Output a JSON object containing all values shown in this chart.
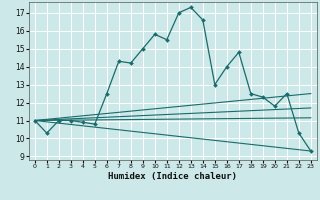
{
  "xlabel": "Humidex (Indice chaleur)",
  "bg_color": "#cce8e8",
  "grid_color": "#aad4d4",
  "line_color": "#1a6b6b",
  "xlim": [
    -0.5,
    23.5
  ],
  "ylim": [
    8.8,
    17.6
  ],
  "yticks": [
    9,
    10,
    11,
    12,
    13,
    14,
    15,
    16,
    17
  ],
  "xticks": [
    0,
    1,
    2,
    3,
    4,
    5,
    6,
    7,
    8,
    9,
    10,
    11,
    12,
    13,
    14,
    15,
    16,
    17,
    18,
    19,
    20,
    21,
    22,
    23
  ],
  "main_x": [
    0,
    1,
    2,
    3,
    4,
    5,
    6,
    7,
    8,
    9,
    10,
    11,
    12,
    13,
    14,
    15,
    16,
    17,
    18,
    19,
    20,
    21,
    22,
    23
  ],
  "main_y": [
    11.0,
    10.3,
    11.0,
    11.0,
    10.9,
    10.8,
    12.5,
    14.3,
    14.2,
    15.0,
    15.8,
    15.5,
    17.0,
    17.3,
    16.6,
    13.0,
    14.0,
    14.8,
    12.5,
    12.3,
    11.8,
    12.5,
    10.3,
    9.3
  ],
  "line2_x": [
    0,
    23
  ],
  "line2_y": [
    11.0,
    12.5
  ],
  "line3_x": [
    0,
    23
  ],
  "line3_y": [
    11.0,
    11.7
  ],
  "line4_x": [
    0,
    23
  ],
  "line4_y": [
    11.0,
    11.15
  ],
  "line5_x": [
    0,
    23
  ],
  "line5_y": [
    11.0,
    9.3
  ]
}
